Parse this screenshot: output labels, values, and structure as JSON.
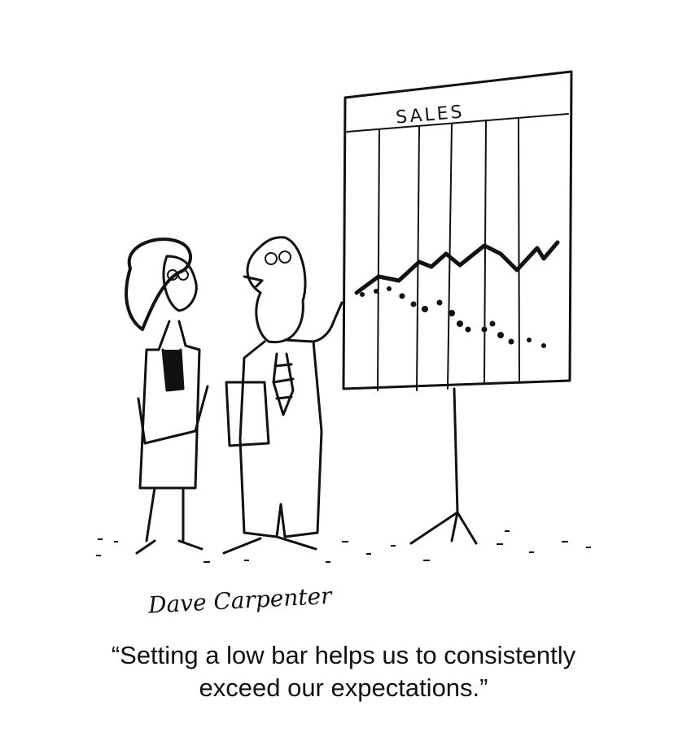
{
  "chart": {
    "title": "SALES",
    "solid_line_trend": "rising",
    "dotted_line_trend": "falling"
  },
  "signature": "Dave Carpenter",
  "caption": {
    "line1": "“Setting a low bar helps us to consistently",
    "line2": "exceed our expectations.”"
  },
  "colors": {
    "ink": "#111111",
    "background": "#ffffff"
  }
}
